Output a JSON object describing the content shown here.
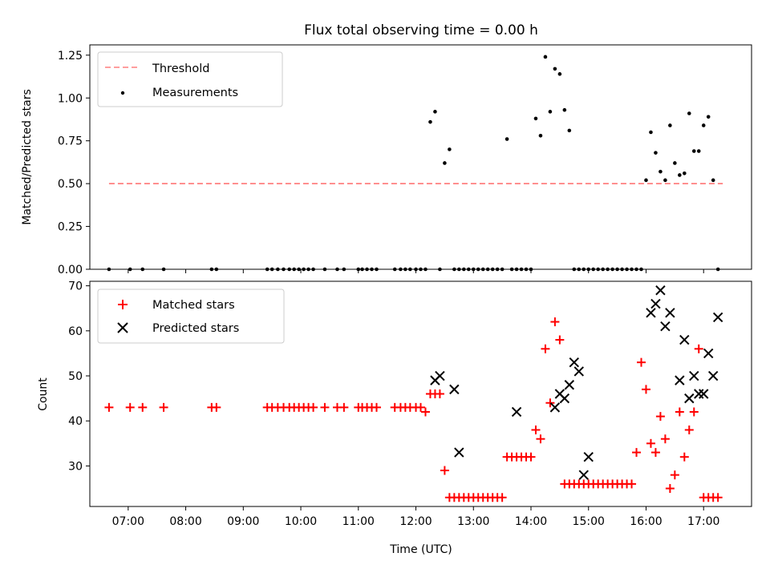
{
  "figure": {
    "title": "Flux total observing time = 0.00 h"
  },
  "chart_data": [
    {
      "type": "scatter",
      "title": "Flux total observing time = 0.00 h",
      "xlabel": "",
      "ylabel": "Matched/Predicted stars",
      "xlim": [
        "06:20",
        "17:50"
      ],
      "ylim": [
        0,
        1.31
      ],
      "yticks": [
        "0.00",
        "0.25",
        "0.50",
        "0.75",
        "1.00",
        "1.25"
      ],
      "grid": false,
      "legend": "top-left",
      "series": [
        {
          "name": "Threshold",
          "kind": "dashed-line",
          "color": "#ff7f7f",
          "x": [
            "06:40",
            "17:20"
          ],
          "y": [
            0.5,
            0.5
          ]
        },
        {
          "name": "Measurements",
          "kind": "dots",
          "color": "#000000",
          "x": [
            "06:40",
            "07:02",
            "07:15",
            "07:37",
            "08:27",
            "08:32",
            "09:25",
            "09:30",
            "09:36",
            "09:42",
            "09:48",
            "09:53",
            "09:58",
            "10:03",
            "10:08",
            "10:13",
            "10:25",
            "10:38",
            "10:45",
            "11:00",
            "11:04",
            "11:09",
            "11:14",
            "11:19",
            "11:38",
            "11:44",
            "11:49",
            "11:54",
            "12:00",
            "12:05",
            "12:10",
            "12:15",
            "12:20",
            "12:25",
            "12:30",
            "12:35",
            "12:40",
            "12:45",
            "12:50",
            "12:55",
            "13:00",
            "13:05",
            "13:10",
            "13:15",
            "13:20",
            "13:25",
            "13:30",
            "13:35",
            "13:40",
            "13:45",
            "13:50",
            "13:55",
            "14:00",
            "14:05",
            "14:10",
            "14:15",
            "14:20",
            "14:25",
            "14:30",
            "14:35",
            "14:40",
            "14:45",
            "14:50",
            "14:55",
            "15:00",
            "15:05",
            "15:10",
            "15:15",
            "15:20",
            "15:25",
            "15:30",
            "15:35",
            "15:40",
            "15:45",
            "15:50",
            "15:55",
            "16:00",
            "16:05",
            "16:10",
            "16:15",
            "16:20",
            "16:25",
            "16:30",
            "16:35",
            "16:40",
            "16:45",
            "16:50",
            "16:55",
            "17:00",
            "17:05",
            "17:10",
            "17:15"
          ],
          "y": [
            0,
            0,
            0,
            0,
            0,
            0,
            0,
            0,
            0,
            0,
            0,
            0,
            0,
            0,
            0,
            0,
            0,
            0,
            0,
            0,
            0,
            0,
            0,
            0,
            0,
            0,
            0,
            0,
            0,
            0,
            0,
            0.86,
            0.92,
            0,
            0.62,
            0.7,
            0,
            0,
            0,
            0,
            0,
            0,
            0,
            0,
            0,
            0,
            0,
            0.76,
            0,
            0,
            0,
            0,
            0,
            0.88,
            0.78,
            1.24,
            0.92,
            1.17,
            1.14,
            0.93,
            0.81,
            0,
            0,
            0,
            0,
            0,
            0,
            0,
            0,
            0,
            0,
            0,
            0,
            0,
            0,
            0,
            0.52,
            0.8,
            0.68,
            0.57,
            0.52,
            0.84,
            0.62,
            0.55,
            0.56,
            0.91,
            0.69,
            0.69,
            0.84,
            0.89,
            0.52,
            0
          ]
        }
      ]
    },
    {
      "type": "scatter",
      "title": "",
      "xlabel": "Time (UTC)",
      "ylabel": "Count",
      "xlim": [
        "06:20",
        "17:50"
      ],
      "ylim": [
        21,
        71
      ],
      "yticks": [
        "30",
        "40",
        "50",
        "60",
        "70"
      ],
      "xticks": [
        "07:00",
        "08:00",
        "09:00",
        "10:00",
        "11:00",
        "12:00",
        "13:00",
        "14:00",
        "15:00",
        "16:00",
        "17:00"
      ],
      "grid": false,
      "legend": "top-left",
      "series": [
        {
          "name": "Matched stars",
          "kind": "plus",
          "color": "#ff0000",
          "x": [
            "06:40",
            "07:02",
            "07:15",
            "07:37",
            "08:27",
            "08:32",
            "09:25",
            "09:30",
            "09:36",
            "09:42",
            "09:48",
            "09:53",
            "09:58",
            "10:03",
            "10:08",
            "10:13",
            "10:25",
            "10:38",
            "10:45",
            "11:00",
            "11:04",
            "11:09",
            "11:14",
            "11:19",
            "11:38",
            "11:44",
            "11:49",
            "11:54",
            "12:00",
            "12:05",
            "12:10",
            "12:15",
            "12:20",
            "12:25",
            "12:30",
            "12:35",
            "12:40",
            "12:45",
            "12:50",
            "12:55",
            "13:00",
            "13:05",
            "13:10",
            "13:15",
            "13:20",
            "13:25",
            "13:30",
            "13:35",
            "13:40",
            "13:45",
            "13:50",
            "13:55",
            "14:00",
            "14:05",
            "14:10",
            "14:15",
            "14:20",
            "14:25",
            "14:30",
            "14:35",
            "14:40",
            "14:45",
            "14:50",
            "14:55",
            "15:00",
            "15:05",
            "15:10",
            "15:15",
            "15:20",
            "15:25",
            "15:30",
            "15:35",
            "15:40",
            "15:45",
            "15:50",
            "15:55",
            "16:00",
            "16:05",
            "16:10",
            "16:15",
            "16:20",
            "16:25",
            "16:30",
            "16:35",
            "16:40",
            "16:45",
            "16:50",
            "16:55",
            "17:00",
            "17:05",
            "17:10",
            "17:15"
          ],
          "y": [
            43,
            43,
            43,
            43,
            43,
            43,
            43,
            43,
            43,
            43,
            43,
            43,
            43,
            43,
            43,
            43,
            43,
            43,
            43,
            43,
            43,
            43,
            43,
            43,
            43,
            43,
            43,
            43,
            43,
            43,
            42,
            46,
            46,
            46,
            29,
            23,
            23,
            23,
            23,
            23,
            23,
            23,
            23,
            23,
            23,
            23,
            23,
            32,
            32,
            32,
            32,
            32,
            32,
            38,
            36,
            56,
            44,
            62,
            58,
            26,
            26,
            26,
            26,
            26,
            26,
            26,
            26,
            26,
            26,
            26,
            26,
            26,
            26,
            26,
            33,
            53,
            47,
            35,
            33,
            41,
            36,
            25,
            28,
            42,
            32,
            38,
            42,
            56,
            23,
            23,
            23,
            23
          ]
        },
        {
          "name": "Predicted stars",
          "kind": "cross",
          "color": "#000000",
          "x": [
            "12:20",
            "12:25",
            "12:40",
            "12:45",
            "13:45",
            "14:25",
            "14:30",
            "14:35",
            "14:40",
            "14:45",
            "14:50",
            "14:55",
            "15:00",
            "16:05",
            "16:10",
            "16:15",
            "16:20",
            "16:25",
            "16:35",
            "16:40",
            "16:45",
            "16:50",
            "16:55",
            "17:00",
            "17:05",
            "17:10",
            "17:15"
          ],
          "y": [
            49,
            50,
            47,
            33,
            42,
            43,
            46,
            45,
            48,
            53,
            51,
            28,
            32,
            64,
            66,
            69,
            61,
            64,
            49,
            58,
            45,
            50,
            46,
            46,
            55,
            50,
            63
          ]
        }
      ]
    }
  ],
  "colors": {
    "threshold": "#ff7f7f",
    "matched": "#ff0000",
    "predicted": "#000000",
    "measurement": "#000000"
  }
}
